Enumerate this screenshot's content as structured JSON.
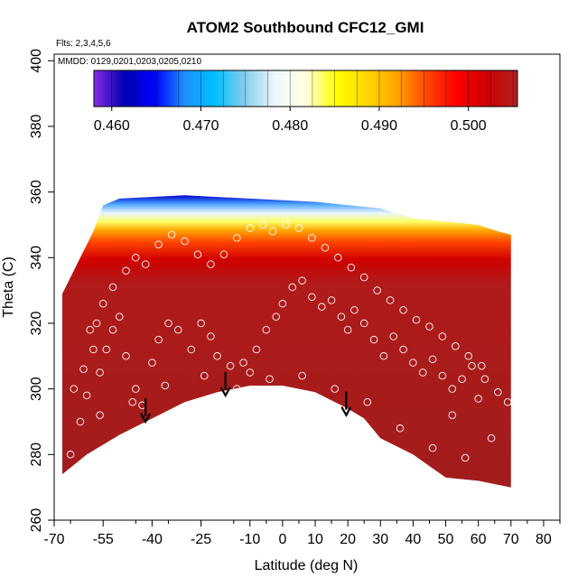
{
  "chart_data": {
    "type": "contour",
    "title": "ATOM2 Southbound CFC12_GMI",
    "flights_note": "Flts: 2,3,4,5,6",
    "dates_note": "MMDD: 0129,0201,0203,0205,0210",
    "xlabel": "Latitude (deg N)",
    "ylabel": "Theta (C)",
    "xlim": [
      -70,
      85
    ],
    "ylim": [
      260,
      402
    ],
    "x_ticks": [
      "-70",
      "-55",
      "-40",
      "-25",
      "-10",
      "0",
      "10",
      "20",
      "30",
      "40",
      "50",
      "60",
      "70",
      "80"
    ],
    "y_ticks": [
      "260",
      "280",
      "300",
      "320",
      "340",
      "360",
      "380",
      "400"
    ],
    "colorbar": {
      "range": [
        0.458,
        0.5055
      ],
      "ticks": [
        "0.460",
        "0.470",
        "0.480",
        "0.490",
        "0.500"
      ],
      "tick_values": [
        0.46,
        0.47,
        0.48,
        0.49,
        0.5
      ],
      "colors": [
        "#8a2be2",
        "#0000b4",
        "#0000ff",
        "#1e90ff",
        "#00bfff",
        "#87ceeb",
        "#f0f8ff",
        "#ffffe0",
        "#ffff00",
        "#ffd700",
        "#ffa500",
        "#ff4500",
        "#ff0000",
        "#cc0000",
        "#b22222"
      ]
    },
    "region_bottom": [
      [
        -67.5,
        274
      ],
      [
        -60,
        280
      ],
      [
        -50,
        286
      ],
      [
        -40,
        291
      ],
      [
        -30,
        296
      ],
      [
        -20,
        299
      ],
      [
        -10,
        301
      ],
      [
        0,
        301
      ],
      [
        10,
        299
      ],
      [
        20,
        294
      ],
      [
        25,
        291
      ],
      [
        30,
        285
      ],
      [
        40,
        280
      ],
      [
        50,
        273
      ],
      [
        60,
        272
      ],
      [
        70,
        270
      ]
    ],
    "region_top": [
      [
        -67.5,
        329
      ],
      [
        -62,
        340
      ],
      [
        -58,
        348
      ],
      [
        -55,
        356
      ],
      [
        -50,
        358
      ],
      [
        -30,
        359
      ],
      [
        -10,
        358
      ],
      [
        10,
        357
      ],
      [
        30,
        355
      ],
      [
        40,
        352
      ],
      [
        60,
        350
      ],
      [
        66,
        348
      ],
      [
        70,
        347
      ]
    ],
    "arrows": [
      {
        "lat": -42,
        "theta": 290
      },
      {
        "lat": -17.5,
        "theta": 298
      },
      {
        "lat": 19.5,
        "theta": 292
      }
    ],
    "points": [
      [
        -67,
        273
      ],
      [
        -65,
        280
      ],
      [
        -62,
        290
      ],
      [
        -60,
        298
      ],
      [
        -56,
        305
      ],
      [
        -54,
        312
      ],
      [
        -52,
        318
      ],
      [
        -50,
        322
      ],
      [
        -48,
        310
      ],
      [
        -45,
        300
      ],
      [
        -43,
        295
      ],
      [
        -40,
        308
      ],
      [
        -38,
        315
      ],
      [
        -35,
        320
      ],
      [
        -32,
        318
      ],
      [
        -28,
        312
      ],
      [
        -25,
        320
      ],
      [
        -22,
        316
      ],
      [
        -20,
        310
      ],
      [
        -16,
        307
      ],
      [
        -12,
        308
      ],
      [
        -10,
        305
      ],
      [
        -8,
        312
      ],
      [
        -5,
        318
      ],
      [
        -2,
        322
      ],
      [
        0,
        326
      ],
      [
        3,
        331
      ],
      [
        6,
        333
      ],
      [
        9,
        328
      ],
      [
        12,
        325
      ],
      [
        15,
        327
      ],
      [
        18,
        322
      ],
      [
        20,
        318
      ],
      [
        22,
        324
      ],
      [
        25,
        320
      ],
      [
        28,
        315
      ],
      [
        31,
        310
      ],
      [
        34,
        316
      ],
      [
        37,
        312
      ],
      [
        40,
        308
      ],
      [
        43,
        305
      ],
      [
        46,
        309
      ],
      [
        49,
        304
      ],
      [
        52,
        300
      ],
      [
        55,
        303
      ],
      [
        58,
        307
      ],
      [
        62,
        303
      ],
      [
        66,
        299
      ],
      [
        69,
        296
      ],
      [
        -58,
        312
      ],
      [
        -57,
        320
      ],
      [
        -55,
        326
      ],
      [
        -52,
        331
      ],
      [
        -48,
        336
      ],
      [
        -45,
        340
      ],
      [
        -42,
        338
      ],
      [
        -38,
        344
      ],
      [
        -34,
        347
      ],
      [
        -30,
        345
      ],
      [
        -26,
        341
      ],
      [
        -22,
        338
      ],
      [
        -18,
        341
      ],
      [
        -14,
        346
      ],
      [
        -10,
        349
      ],
      [
        -6,
        350
      ],
      [
        -3,
        348
      ],
      [
        1,
        350
      ],
      [
        5,
        349
      ],
      [
        9,
        346
      ],
      [
        13,
        343
      ],
      [
        17,
        340
      ],
      [
        21,
        337
      ],
      [
        25,
        334
      ],
      [
        29,
        330
      ],
      [
        33,
        327
      ],
      [
        37,
        324
      ],
      [
        41,
        321
      ],
      [
        45,
        319
      ],
      [
        49,
        316
      ],
      [
        53,
        313
      ],
      [
        57,
        310
      ],
      [
        61,
        307
      ],
      [
        -64,
        300
      ],
      [
        -61,
        306
      ],
      [
        -59,
        318
      ],
      [
        -56,
        292
      ],
      [
        -46,
        296
      ],
      [
        -36,
        301
      ],
      [
        -24,
        304
      ],
      [
        -14,
        300
      ],
      [
        -4,
        303
      ],
      [
        6,
        304
      ],
      [
        16,
        300
      ],
      [
        26,
        296
      ],
      [
        36,
        288
      ],
      [
        46,
        282
      ],
      [
        56,
        279
      ],
      [
        64,
        285
      ],
      [
        60,
        297
      ],
      [
        52,
        292
      ]
    ]
  }
}
